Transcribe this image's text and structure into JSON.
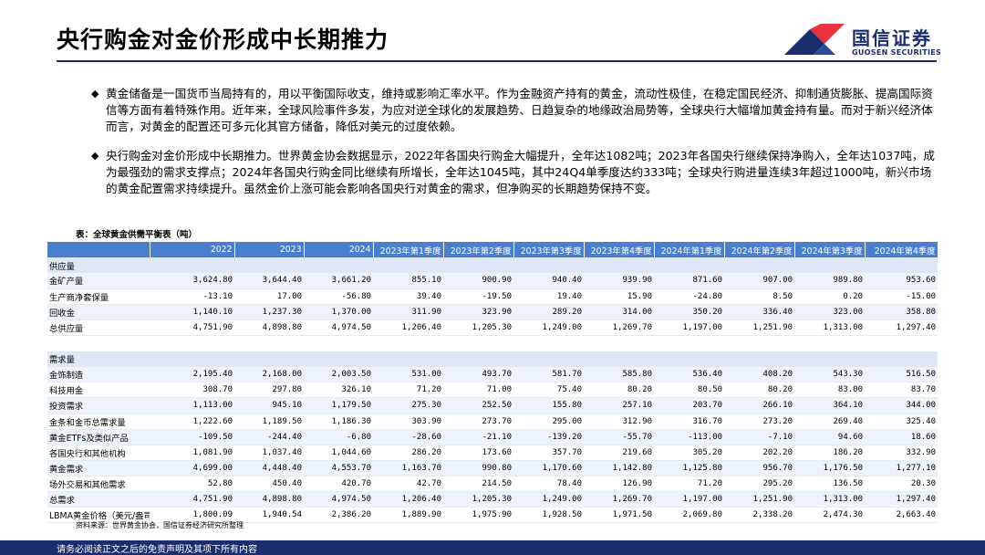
{
  "header": {
    "title": "央行购金对金价形成中长期推力",
    "logo_cn": "国信证券",
    "logo_en": "GUOSEN SECURITIES"
  },
  "paragraphs": [
    {
      "bullet": "◆",
      "text": "黄金储备是一国货币当局持有的，用以平衡国际收支，维持或影响汇率水平。作为金融资产持有的黄金，流动性极佳，在稳定国民经济、抑制通货膨胀、提高国际资信等方面有着特殊作用。近年来，全球风险事件多发，为应对逆全球化的发展趋势、日趋复杂的地缘政治局势等，全球央行大幅增加黄金持有量。而对于新兴经济体而言，对黄金的配置还可多元化其官方储备，降低对美元的过度依赖。"
    },
    {
      "bullet": "◆",
      "text": "央行购金对金价形成中长期推力。世界黄金协会数据显示，2022年各国央行购金大幅提升，全年达1082吨；2023年各国央行继续保持净购入，全年达1037吨，成为最强劲的需求支撑点；2024年各国央行购金同比继续有所增长，全年达1045吨，其中24Q4单季度达约333吨；全球央行购进量连续3年超过1000吨，新兴市场的黄金配置需求持续提升。虽然金价上涨可能会影响各国央行对黄金的需求，但净购买的长期趋势保持不变。"
    }
  ],
  "table": {
    "caption": "表：全球黄金供需平衡表（吨）",
    "columns": [
      "",
      "2022",
      "2023",
      "2024",
      "2023年第1季度",
      "2023年第2季度",
      "2023年第3季度",
      "2023年第4季度",
      "2024年第1季度",
      "2024年第2季度",
      "2024年第3季度",
      "2024年第4季度"
    ],
    "rows": [
      {
        "kind": "section",
        "cells": [
          "供应量",
          "",
          "",
          "",
          "",
          "",
          "",
          "",
          "",
          "",
          "",
          ""
        ]
      },
      {
        "kind": "data",
        "cells": [
          "金矿产量",
          "3,624.80",
          "3,644.40",
          "3,661.20",
          "855.10",
          "900.90",
          "940.40",
          "939.90",
          "871.60",
          "907.00",
          "989.80",
          "953.60"
        ]
      },
      {
        "kind": "data",
        "cells": [
          "生产商净套保量",
          "-13.10",
          "17.00",
          "-56.80",
          "39.40",
          "-19.50",
          "19.40",
          "15.90",
          "-24.80",
          "8.50",
          "0.20",
          "-15.00"
        ]
      },
      {
        "kind": "data",
        "cells": [
          "回收金",
          "1,140.10",
          "1,237.30",
          "1,370.00",
          "311.90",
          "323.90",
          "289.20",
          "314.00",
          "350.20",
          "336.40",
          "323.00",
          "358.80"
        ]
      },
      {
        "kind": "data",
        "cells": [
          "总供应量",
          "4,751.90",
          "4,898.80",
          "4,974.50",
          "1,206.40",
          "1,205.30",
          "1,249.00",
          "1,269.70",
          "1,197.00",
          "1,251.90",
          "1,313.00",
          "1,297.40"
        ]
      },
      {
        "kind": "blank",
        "cells": [
          "",
          "",
          "",
          "",
          "",
          "",
          "",
          "",
          "",
          "",
          "",
          ""
        ]
      },
      {
        "kind": "section",
        "cells": [
          "需求量",
          "",
          "",
          "",
          "",
          "",
          "",
          "",
          "",
          "",
          "",
          ""
        ]
      },
      {
        "kind": "data",
        "cells": [
          "金饰制造",
          "2,195.40",
          "2,168.00",
          "2,003.50",
          "531.00",
          "493.70",
          "581.70",
          "585.80",
          "536.40",
          "408.20",
          "543.30",
          "516.50"
        ]
      },
      {
        "kind": "data",
        "cells": [
          "科技用金",
          "308.70",
          "297.80",
          "326.10",
          "71.20",
          "71.00",
          "75.40",
          "80.20",
          "80.50",
          "80.20",
          "83.00",
          "83.70"
        ]
      },
      {
        "kind": "data",
        "cells": [
          "投资需求",
          "1,113.00",
          "945.10",
          "1,179.50",
          "275.30",
          "252.50",
          "155.80",
          "257.10",
          "203.70",
          "266.10",
          "364.10",
          "344.00"
        ]
      },
      {
        "kind": "data",
        "cells": [
          "金条和金币总需求量",
          "1,222.60",
          "1,189.50",
          "1,186.30",
          "303.90",
          "273.70",
          "295.00",
          "312.90",
          "316.70",
          "273.20",
          "269.40",
          "325.40"
        ]
      },
      {
        "kind": "data",
        "cells": [
          "黄金ETFs及类似产品",
          "-109.50",
          "-244.40",
          "-6.80",
          "-28.60",
          "-21.10",
          "-139.20",
          "-55.70",
          "-113.00",
          "-7.10",
          "94.60",
          "18.60"
        ]
      },
      {
        "kind": "data",
        "cells": [
          "各国央行和其他机构",
          "1,081.90",
          "1,037.40",
          "1,044.60",
          "286.20",
          "173.60",
          "357.70",
          "219.60",
          "305.20",
          "202.20",
          "186.20",
          "332.90"
        ]
      },
      {
        "kind": "data",
        "cells": [
          "黄金需求",
          "4,699.00",
          "4,448.40",
          "4,553.70",
          "1,163.70",
          "990.80",
          "1,170.60",
          "1,142.80",
          "1,125.80",
          "956.70",
          "1,176.50",
          "1,277.10"
        ]
      },
      {
        "kind": "data",
        "cells": [
          "场外交易和其他需求",
          "52.80",
          "450.40",
          "420.70",
          "42.70",
          "214.50",
          "78.40",
          "126.90",
          "71.20",
          "295.20",
          "136.50",
          "20.30"
        ]
      },
      {
        "kind": "data",
        "cells": [
          "总需求",
          "4,751.90",
          "4,898.80",
          "4,974.50",
          "1,206.40",
          "1,205.30",
          "1,249.00",
          "1,269.70",
          "1,197.00",
          "1,251.90",
          "1,313.00",
          "1,297.40"
        ]
      },
      {
        "kind": "data",
        "cells": [
          "LBMA黄金价格（美元/盎司）",
          "1,800.09",
          "1,940.54",
          "2,386.20",
          "1,889.90",
          "1,975.90",
          "1,928.50",
          "1,971.50",
          "2,069.80",
          "2,338.20",
          "2,474.30",
          "2,663.40"
        ]
      }
    ]
  },
  "source": "资料来源：世界黄金协会，国信证券经济研究所整理",
  "footer": "请务必阅读正文之后的免责声明及其项下所有内容",
  "colors": {
    "brand_navy": "#1a2e6e",
    "brand_red": "#e8333c",
    "header_blue": "#4a7fd0",
    "section_fill": "#dde7f6"
  }
}
